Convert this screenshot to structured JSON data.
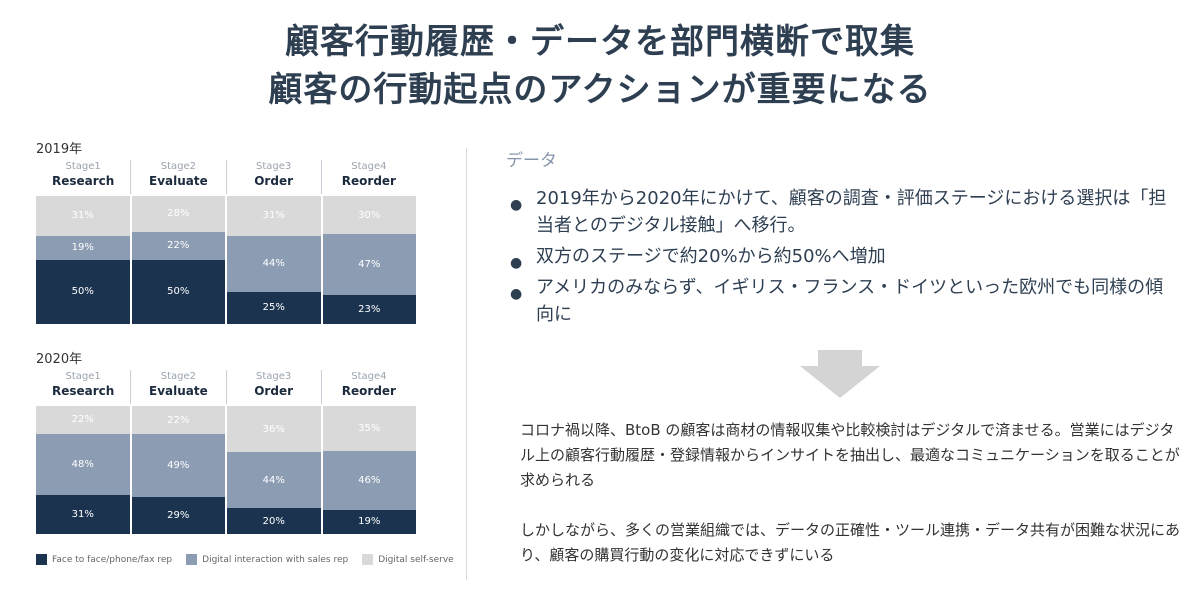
{
  "title": {
    "line1": "顧客行動履歴・データを部門横断で取集",
    "line2": "顧客の行動起点のアクションが重要になる"
  },
  "chart_data": [
    {
      "type": "bar",
      "title": "2019年",
      "stacked": true,
      "categories": [
        "Research",
        "Evaluate",
        "Order",
        "Reorder"
      ],
      "stage_labels": [
        "Stage1",
        "Stage2",
        "Stage3",
        "Stage4"
      ],
      "series": [
        {
          "name": "Digital self-serve",
          "values": [
            31,
            28,
            31,
            30
          ],
          "color": "#d9d9d9"
        },
        {
          "name": "Digital interaction with sales rep",
          "values": [
            19,
            22,
            44,
            47
          ],
          "color": "#8b9cb3"
        },
        {
          "name": "Face to face/phone/fax rep",
          "values": [
            50,
            50,
            25,
            23
          ],
          "color": "#1c3350"
        }
      ],
      "unit": "%"
    },
    {
      "type": "bar",
      "title": "2020年",
      "stacked": true,
      "categories": [
        "Research",
        "Evaluate",
        "Order",
        "Reorder"
      ],
      "stage_labels": [
        "Stage1",
        "Stage2",
        "Stage3",
        "Stage4"
      ],
      "series": [
        {
          "name": "Digital self-serve",
          "values": [
            22,
            22,
            36,
            35
          ],
          "color": "#d9d9d9"
        },
        {
          "name": "Digital interaction with sales rep",
          "values": [
            48,
            49,
            44,
            46
          ],
          "color": "#8b9cb3"
        },
        {
          "name": "Face to face/phone/fax rep",
          "values": [
            31,
            29,
            20,
            19
          ],
          "color": "#1c3350"
        }
      ],
      "unit": "%"
    }
  ],
  "legend": [
    {
      "label": "Face to face/phone/fax rep",
      "color": "#1c3350"
    },
    {
      "label": "Digital interaction with sales rep",
      "color": "#8b9cb3"
    },
    {
      "label": "Digital self-serve",
      "color": "#d9d9d9"
    }
  ],
  "right": {
    "section_label": "データ",
    "bullets": [
      "2019年から2020年にかけて、顧客の調査・評価ステージにおける選択は「担当者とのデジタル接触」へ移行。",
      "双方のステージで約20%から約50%へ増加",
      "アメリカのみならず、イギリス・フランス・ドイツといった欧州でも同様の傾向に"
    ],
    "bullet_char": "●"
  },
  "summary": {
    "para1": "コロナ禍以降、BtoB の顧客は商材の情報収集や比較検討はデジタルで済ませる。営業にはデジタル上の顧客行動履歴・登録情報からインサイトを抽出し、最適なコミュニケーションを取ることが求められる",
    "para2": "しかしながら、多くの営業組織では、データの正確性・ツール連携・データ共有が困難な状況にあり、顧客の購買行動の変化に対応できずにいる"
  },
  "colors": {
    "arrow": "#d4d4d4",
    "title": "#2e3f52"
  }
}
